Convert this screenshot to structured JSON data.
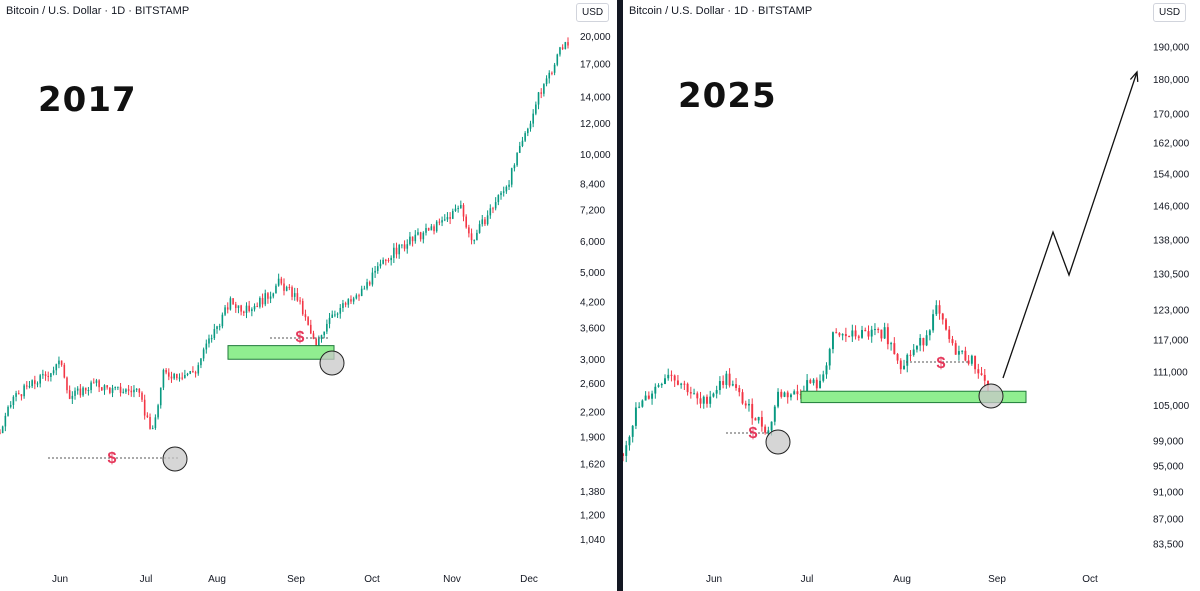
{
  "colors": {
    "up": "#089981",
    "down": "#f23645",
    "zone": "#90ee90",
    "zone_border": "#1f7a3a",
    "circle": "#c8c8c8",
    "dollar": "#e5375a"
  },
  "chart_data": [
    {
      "type": "candlestick",
      "header": "Bitcoin / U.S. Dollar · 1D · BITSTAMP",
      "year_label": "2017",
      "currency": "USD",
      "yticks": [
        "20,000",
        "17,000",
        "14,000",
        "12,000",
        "10,000",
        "8,400",
        "7,200",
        "6,000",
        "5,000",
        "4,200",
        "3,600",
        "3,000",
        "2,600",
        "2,200",
        "1,900",
        "1,620",
        "1,380",
        "1,200",
        "1,040"
      ],
      "xticks": [
        "Jun",
        "Jul",
        "Aug",
        "Sep",
        "Oct",
        "Nov",
        "Dec"
      ],
      "scale": "log",
      "ylim": [
        950,
        21000
      ],
      "start_date": "2017-05-20",
      "end_date": "2017-12-18",
      "anchors": [
        [
          "2017-05-20",
          1950
        ],
        [
          "2017-05-25",
          2400
        ],
        [
          "2017-06-05",
          2700
        ],
        [
          "2017-06-12",
          2950
        ],
        [
          "2017-06-15",
          2400
        ],
        [
          "2017-06-24",
          2600
        ],
        [
          "2017-07-01",
          2500
        ],
        [
          "2017-07-10",
          2500
        ],
        [
          "2017-07-16",
          1950
        ],
        [
          "2017-07-20",
          2750
        ],
        [
          "2017-07-28",
          2750
        ],
        [
          "2017-08-01",
          2800
        ],
        [
          "2017-08-05",
          3250
        ],
        [
          "2017-08-14",
          4200
        ],
        [
          "2017-08-20",
          4000
        ],
        [
          "2017-08-28",
          4350
        ],
        [
          "2017-09-01",
          4700
        ],
        [
          "2017-09-08",
          4300
        ],
        [
          "2017-09-15",
          3200
        ],
        [
          "2017-09-20",
          3900
        ],
        [
          "2017-09-30",
          4300
        ],
        [
          "2017-10-12",
          5500
        ],
        [
          "2017-10-20",
          6000
        ],
        [
          "2017-11-01",
          6700
        ],
        [
          "2017-11-08",
          7400
        ],
        [
          "2017-11-12",
          6000
        ],
        [
          "2017-11-26",
          8600
        ],
        [
          "2017-12-07",
          14000
        ],
        [
          "2017-12-16",
          19000
        ]
      ],
      "support_zone": [
        3000,
        3250
      ],
      "annotations": {
        "dollar": "$"
      }
    },
    {
      "type": "candlestick",
      "header": "Bitcoin / U.S. Dollar · 1D · BITSTAMP",
      "year_label": "2025",
      "currency": "USD",
      "yticks": [
        "190,000",
        "180,000",
        "170,000",
        "162,000",
        "154,000",
        "146,000",
        "138,000",
        "130,500",
        "123,000",
        "117,000",
        "111,000",
        "105,000",
        "99,000",
        "95,000",
        "91,000",
        "87,000",
        "83,500"
      ],
      "xticks": [
        "Jun",
        "Jul",
        "Aug",
        "Sep",
        "Oct"
      ],
      "scale": "log",
      "ylim": [
        82000,
        196000
      ],
      "start_date": "2025-05-08",
      "end_date": "2025-08-29",
      "anchors": [
        [
          "2025-05-08",
          97000
        ],
        [
          "2025-05-12",
          104000
        ],
        [
          "2025-05-22",
          111000
        ],
        [
          "2025-05-28",
          108000
        ],
        [
          "2025-06-01",
          105000
        ],
        [
          "2025-06-09",
          110000
        ],
        [
          "2025-06-15",
          105000
        ],
        [
          "2025-06-22",
          100500
        ],
        [
          "2025-06-25",
          107000
        ],
        [
          "2025-07-01",
          107000
        ],
        [
          "2025-07-04",
          109000
        ],
        [
          "2025-07-08",
          108500
        ],
        [
          "2025-07-12",
          117500
        ],
        [
          "2025-07-20",
          118000
        ],
        [
          "2025-07-28",
          118500
        ],
        [
          "2025-08-02",
          112500
        ],
        [
          "2025-08-09",
          117000
        ],
        [
          "2025-08-13",
          123000
        ],
        [
          "2025-08-18",
          115500
        ],
        [
          "2025-08-24",
          113000
        ],
        [
          "2025-08-29",
          108500
        ]
      ],
      "support_zone": [
        105500,
        107500
      ],
      "projection": [
        [
          "2025-08-29",
          108500
        ],
        [
          "2025-09-20",
          139000
        ],
        [
          "2025-09-26",
          129000
        ],
        [
          "2025-10-16",
          178000
        ]
      ],
      "annotations": {
        "dollar": "$"
      }
    }
  ]
}
